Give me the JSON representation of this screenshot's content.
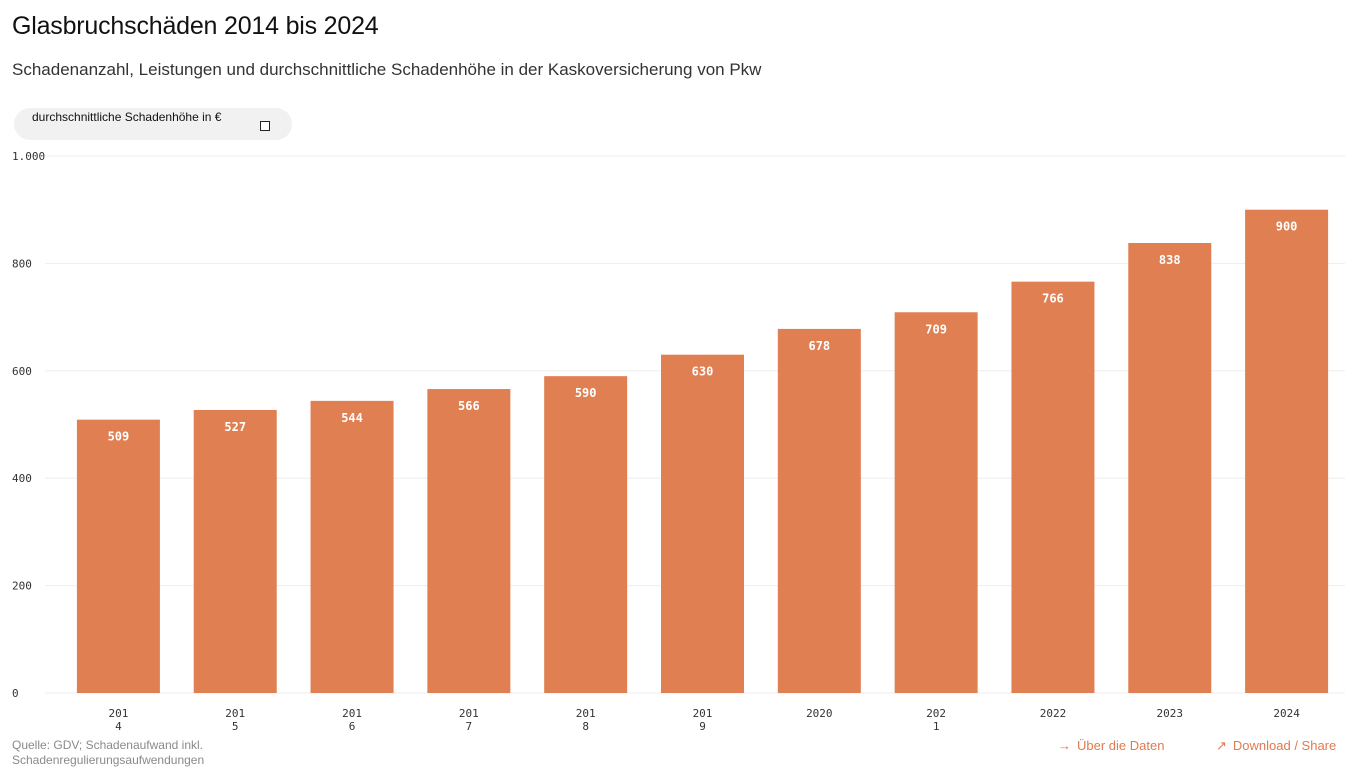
{
  "title": "Glasbruchschäden 2014 bis 2024",
  "subtitle": "Schadenanzahl, Leistungen und durchschnittliche Schadenhöhe in der Kaskoversicherung von Pkw",
  "legend": {
    "label": "durchschnittliche Schadenhöhe in €",
    "icon": "checkbox-icon"
  },
  "footer": {
    "source": "Quelle: GDV; Schadenaufwand inkl. Schadenregulierungsaufwendungen",
    "about_link": "Über die Daten",
    "about_icon": "→",
    "download_link": "Download / Share",
    "download_icon": "↗"
  },
  "colors": {
    "bar": "#e07f52",
    "bar_label": "#ffffff",
    "grid": "#eeeeee",
    "axis_text": "#333333"
  },
  "chart_data": {
    "type": "bar",
    "categories": [
      "2014",
      "2015",
      "2016",
      "2017",
      "2018",
      "2019",
      "2020",
      "2021",
      "2022",
      "2023",
      "2024"
    ],
    "category_tick_labels": [
      [
        "201",
        "4"
      ],
      [
        "201",
        "5"
      ],
      [
        "201",
        "6"
      ],
      [
        "201",
        "7"
      ],
      [
        "201",
        "8"
      ],
      [
        "201",
        "9"
      ],
      [
        "2020"
      ],
      [
        "202",
        "1"
      ],
      [
        "2022"
      ],
      [
        "2023"
      ],
      [
        "2024"
      ]
    ],
    "series": [
      {
        "name": "durchschnittliche Schadenhöhe in €",
        "values": [
          509,
          527,
          544,
          566,
          590,
          630,
          678,
          709,
          766,
          838,
          900
        ]
      }
    ],
    "y_ticks": [
      0,
      200,
      400,
      600,
      800,
      1000
    ],
    "y_tick_labels": [
      "0",
      "200",
      "400",
      "600",
      "800",
      "1.000"
    ],
    "ylim": [
      0,
      1000
    ],
    "grid": true,
    "data_labels": true
  }
}
